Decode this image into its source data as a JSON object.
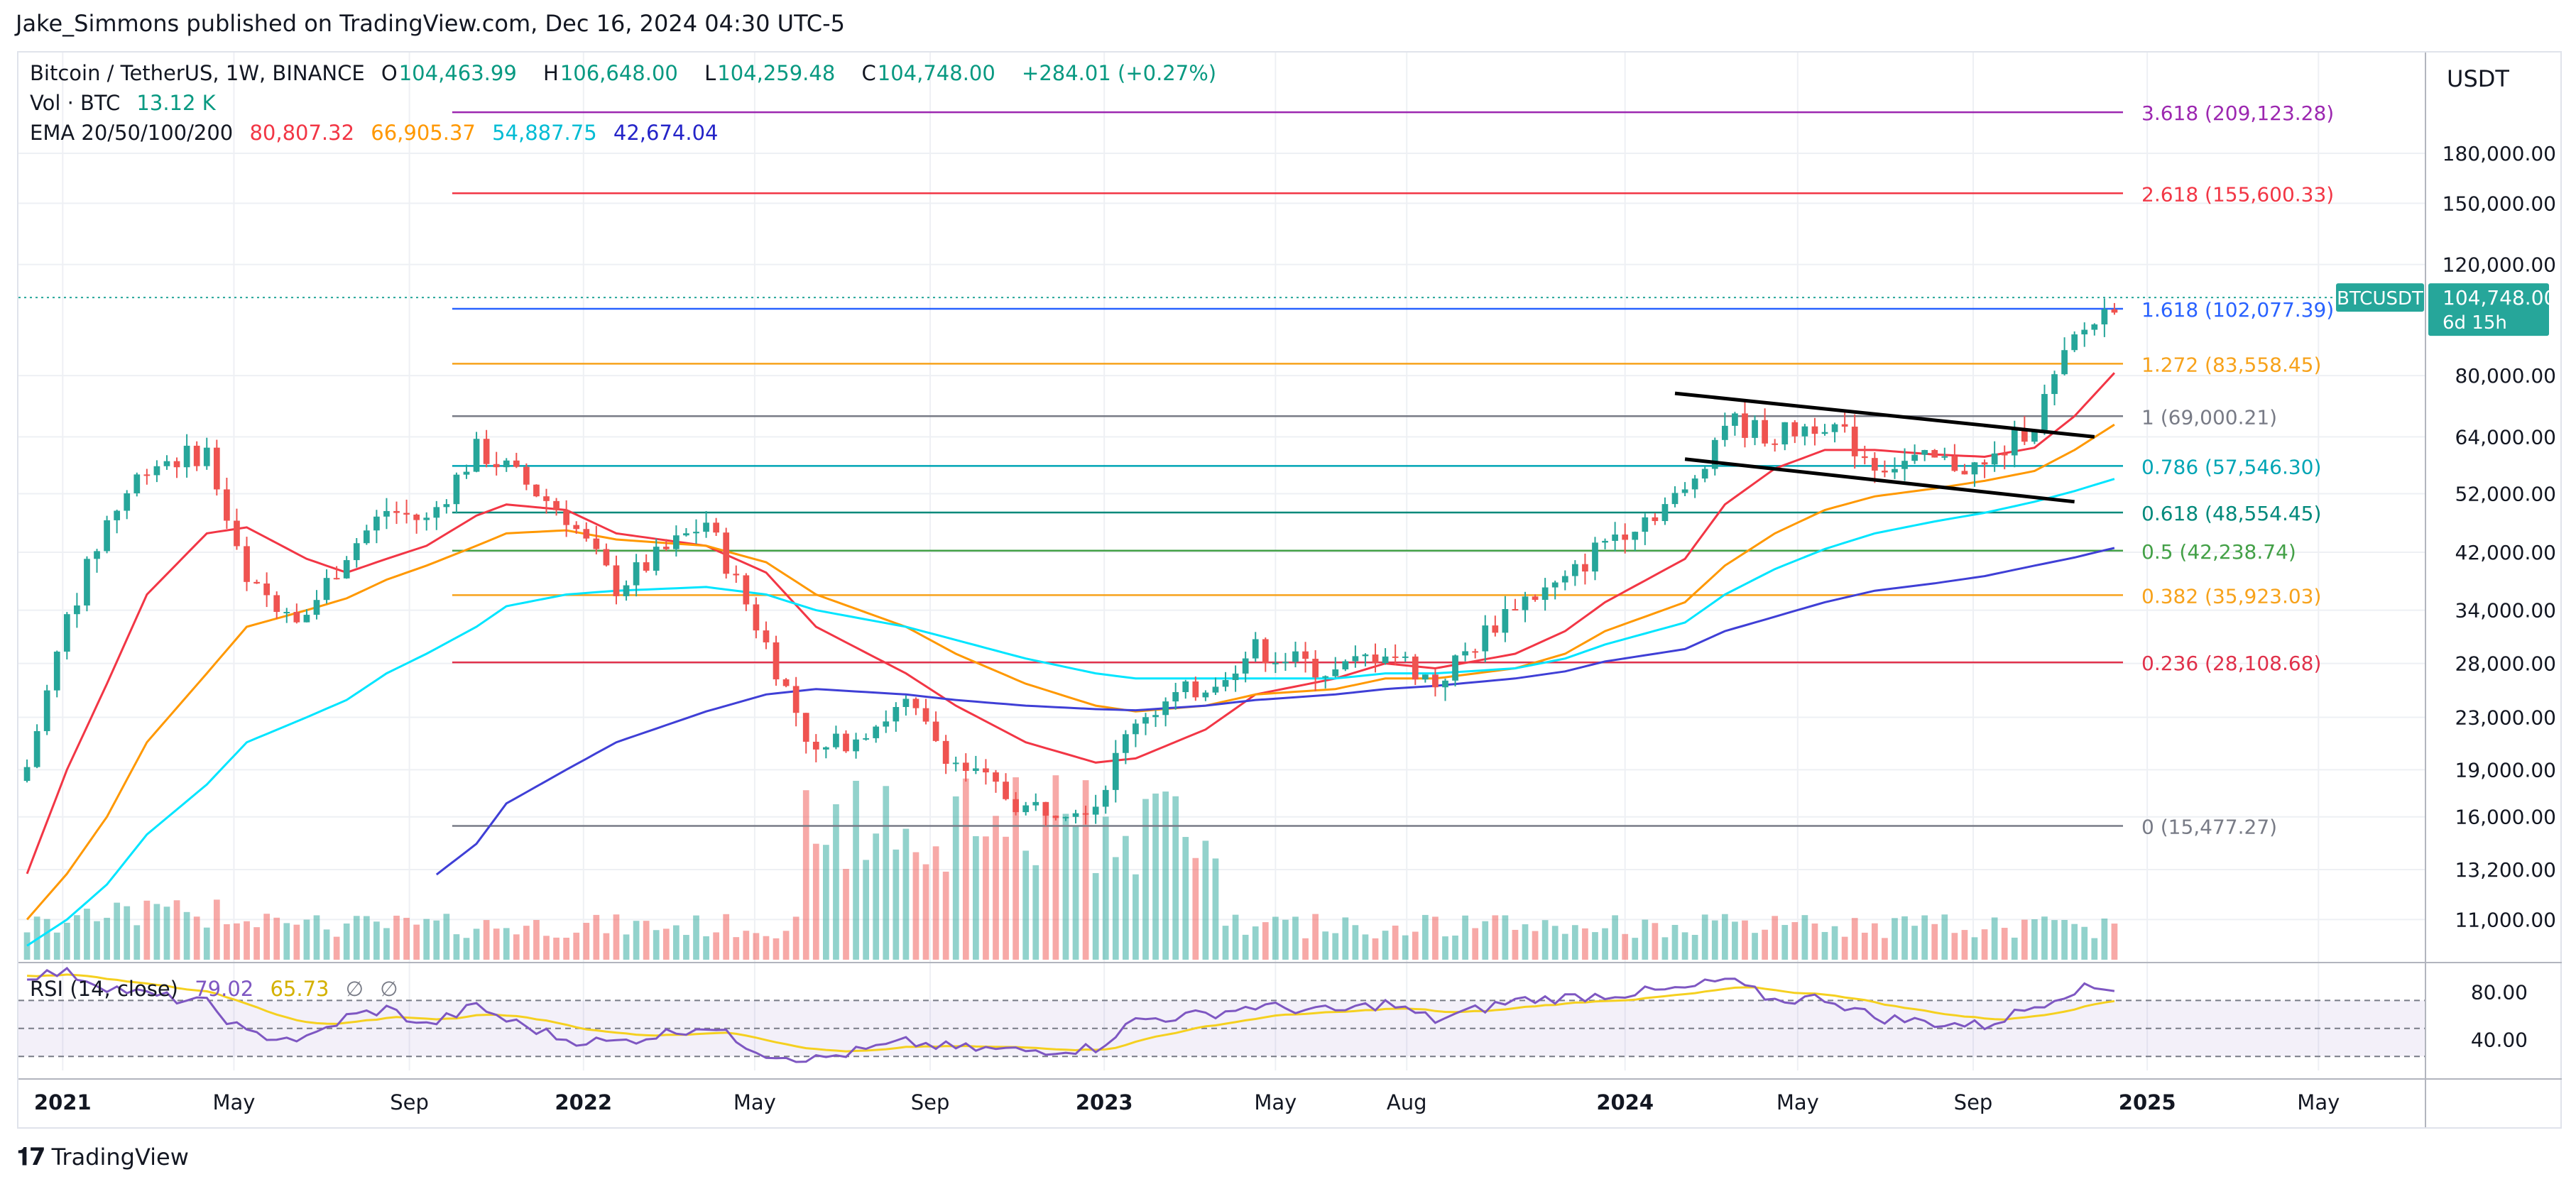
{
  "header": {
    "publisher": "Jake_Simmons published on TradingView.com, Dec 16, 2024 04:30 UTC-5"
  },
  "legend": {
    "symbol": "Bitcoin / TetherUS, 1W, BINANCE",
    "ohlc": [
      {
        "k": "O",
        "v": "104,463.99"
      },
      {
        "k": "H",
        "v": "106,648.00"
      },
      {
        "k": "L",
        "v": "104,259.48"
      },
      {
        "k": "C",
        "v": "104,748.00"
      }
    ],
    "change": "+284.01 (+0.27%)",
    "vol_label": "Vol · BTC",
    "vol_value": "13.12 K",
    "ema_label": "EMA 20/50/100/200",
    "ema_values": [
      "80,807.32",
      "66,905.37",
      "54,887.75",
      "42,674.04"
    ],
    "rsi_label": "RSI (14, close)",
    "rsi_values": [
      "79.02",
      "65.73"
    ],
    "rsi_na": [
      "∅",
      "∅"
    ]
  },
  "colors": {
    "up": "#26a69a",
    "down": "#ef5350",
    "ema20": "#f23645",
    "ema50": "#ff9800",
    "ema100": "#00e5ff",
    "ema200": "#3f3fd6",
    "rsi": "#7e57c2",
    "rsi_ma": "#f5d020",
    "grid": "#eef0f4"
  },
  "price_axis": {
    "currency": "USDT",
    "ticks": [
      "180,000.00",
      "150,000.00",
      "120,000.00",
      "80,000.00",
      "64,000.00",
      "52,000.00",
      "42,000.00",
      "34,000.00",
      "28,000.00",
      "23,000.00",
      "19,000.00",
      "16,000.00",
      "13,200.00",
      "11,000.00"
    ],
    "last_symbol": "BTCUSDT",
    "last_price": "104,748.00",
    "countdown": "6d 15h"
  },
  "rsi_axis": {
    "ticks": [
      "80.00",
      "40.00"
    ]
  },
  "time_axis": {
    "labels": [
      "2021",
      "May",
      "Sep",
      "2022",
      "May",
      "Sep",
      "2023",
      "May",
      "Aug",
      "2024",
      "May",
      "Sep",
      "2025",
      "May"
    ]
  },
  "fib_levels": [
    {
      "ratio": "3.618",
      "price": "(209,123.28)",
      "value": 209123.28,
      "color": "#9c27b0"
    },
    {
      "ratio": "2.618",
      "price": "(155,600.33)",
      "value": 155600.33,
      "color": "#f23645"
    },
    {
      "ratio": "1.618",
      "price": "(102,077.39)",
      "value": 102077.39,
      "color": "#2962ff"
    },
    {
      "ratio": "1.272",
      "price": "(83,558.45)",
      "value": 83558.45,
      "color": "#f7a21b"
    },
    {
      "ratio": "1",
      "price": "(69,000.21)",
      "value": 69000.21,
      "color": "#787b86"
    },
    {
      "ratio": "0.786",
      "price": "(57,546.30)",
      "value": 57546.3,
      "color": "#00a5b5"
    },
    {
      "ratio": "0.618",
      "price": "(48,554.45)",
      "value": 48554.45,
      "color": "#00897b"
    },
    {
      "ratio": "0.5",
      "price": "(42,238.74)",
      "value": 42238.74,
      "color": "#43a047"
    },
    {
      "ratio": "0.382",
      "price": "(35,923.03)",
      "value": 35923.03,
      "color": "#f7a21b"
    },
    {
      "ratio": "0.236",
      "price": "(28,108.68)",
      "value": 28108.68,
      "color": "#e0314b"
    },
    {
      "ratio": "0",
      "price": "(15,477.27)",
      "value": 15477.27,
      "color": "#787b86"
    }
  ],
  "chart_data": {
    "type": "line",
    "subtype": "candlestick",
    "title": "Bitcoin / TetherUS, 1W, BINANCE",
    "y_scale": "log",
    "ylim": [
      9500,
      260000
    ],
    "x": [
      "2020-12-07",
      "2021-01-04",
      "2021-02-01",
      "2021-03-01",
      "2021-04-12",
      "2021-05-10",
      "2021-06-21",
      "2021-07-19",
      "2021-08-16",
      "2021-09-13",
      "2021-10-18",
      "2021-11-08",
      "2021-12-20",
      "2022-01-24",
      "2022-03-28",
      "2022-05-09",
      "2022-06-13",
      "2022-08-15",
      "2022-09-19",
      "2022-11-07",
      "2022-12-26",
      "2023-01-23",
      "2023-03-13",
      "2023-04-17",
      "2023-06-12",
      "2023-07-17",
      "2023-08-21",
      "2023-10-16",
      "2023-11-20",
      "2023-12-18",
      "2024-02-12",
      "2024-03-11",
      "2024-04-15",
      "2024-05-20",
      "2024-06-24",
      "2024-08-05",
      "2024-09-09",
      "2024-10-14",
      "2024-11-11",
      "2024-12-09"
    ],
    "series": [
      {
        "name": "BTCUSDT",
        "values": [
          19200,
          33000,
          47000,
          58000,
          60500,
          37000,
          33500,
          42000,
          49000,
          47000,
          61000,
          57000,
          48000,
          37000,
          47000,
          30000,
          20000,
          24000,
          19500,
          16500,
          16900,
          23000,
          26000,
          29500,
          27000,
          29500,
          26000,
          35000,
          37500,
          44000,
          52000,
          68000,
          64000,
          68000,
          58000,
          58500,
          57000,
          68000,
          91000,
          104748
        ]
      },
      {
        "name": "EMA 20",
        "values": [
          13000,
          19000,
          26000,
          36000,
          45000,
          46000,
          41000,
          39000,
          41000,
          43000,
          48000,
          50000,
          49000,
          45000,
          43000,
          39000,
          32000,
          27000,
          24000,
          21000,
          19500,
          19800,
          22000,
          25000,
          26500,
          28000,
          27500,
          29000,
          31500,
          35000,
          41000,
          50000,
          57000,
          61000,
          61000,
          60000,
          59500,
          61500,
          69000,
          80807.32
        ]
      },
      {
        "name": "EMA 50",
        "values": [
          11000,
          13000,
          16000,
          21000,
          27000,
          32000,
          34000,
          35500,
          38000,
          40000,
          43000,
          45000,
          45500,
          44000,
          43000,
          40500,
          36000,
          32000,
          29000,
          26000,
          24000,
          23500,
          24000,
          25000,
          25500,
          26500,
          26500,
          27500,
          29000,
          31500,
          35000,
          40000,
          45000,
          49000,
          51500,
          53000,
          54500,
          56500,
          61000,
          66905.37
        ]
      },
      {
        "name": "EMA 100",
        "values": [
          10000,
          11000,
          12500,
          15000,
          18000,
          21000,
          23000,
          24500,
          27000,
          29000,
          32000,
          34500,
          36000,
          36500,
          37000,
          36000,
          34000,
          32000,
          30500,
          28500,
          27000,
          26500,
          26500,
          26500,
          26500,
          27000,
          27000,
          27500,
          28500,
          30000,
          32500,
          36000,
          39500,
          42500,
          45000,
          47000,
          48500,
          50500,
          52500,
          54887.75
        ]
      },
      {
        "name": "EMA 200",
        "values": [
          null,
          null,
          null,
          null,
          null,
          null,
          null,
          null,
          null,
          12600,
          14500,
          16800,
          19000,
          21000,
          23500,
          25000,
          25500,
          25000,
          24500,
          24000,
          23700,
          23600,
          24000,
          24500,
          25000,
          25500,
          25800,
          26500,
          27200,
          28200,
          29500,
          31500,
          33200,
          35000,
          36500,
          37500,
          38500,
          40000,
          41200,
          42674.04
        ]
      },
      {
        "name": "RSI",
        "values": [
          88,
          90,
          80,
          74,
          68,
          46,
          42,
          58,
          64,
          52,
          66,
          56,
          42,
          40,
          52,
          32,
          28,
          40,
          36,
          34,
          36,
          56,
          60,
          66,
          62,
          68,
          56,
          70,
          72,
          74,
          78,
          85,
          70,
          72,
          58,
          54,
          52,
          66,
          78,
          79.02
        ]
      }
    ],
    "trendlines": [
      {
        "name": "upper",
        "from": [
          "2024-02-05",
          75000
        ],
        "to": [
          "2024-11-25",
          64000
        ]
      },
      {
        "name": "lower",
        "from": [
          "2024-02-12",
          59000
        ],
        "to": [
          "2024-11-11",
          50500
        ]
      }
    ]
  }
}
